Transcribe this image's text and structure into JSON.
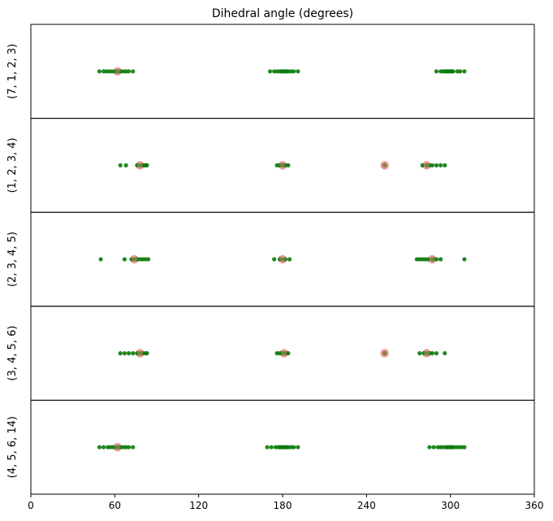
{
  "chart_data": {
    "type": "scatter",
    "title": "Dihedral angle (degrees)",
    "xlim": [
      0,
      360
    ],
    "xticks": [
      0,
      60,
      120,
      180,
      240,
      300,
      360
    ],
    "grid": false,
    "colors": {
      "samples": "#0a7a0a",
      "reference": "#e88a80"
    },
    "panels": [
      {
        "label": "(7, 1, 2, 3)",
        "green": [
          49,
          52,
          54,
          56,
          58,
          60,
          61,
          62,
          63,
          64,
          66,
          68,
          70,
          73,
          171,
          174,
          176,
          178,
          179,
          180,
          181,
          182,
          183,
          184,
          186,
          188,
          191,
          290,
          293,
          295,
          296,
          297,
          298,
          299,
          300,
          301,
          302,
          305,
          307,
          310
        ],
        "pink": [
          62
        ]
      },
      {
        "label": "(1, 2, 3, 4)",
        "green": [
          64,
          68,
          76,
          78,
          80,
          81,
          82,
          83,
          176,
          178,
          180,
          181,
          182,
          184,
          253,
          280,
          283,
          285,
          287,
          290,
          293,
          296
        ],
        "pink": [
          78,
          180,
          253,
          283
        ]
      },
      {
        "label": "(2, 3, 4, 5)",
        "green": [
          50,
          67,
          72,
          74,
          76,
          78,
          80,
          82,
          84,
          174,
          178,
          180,
          182,
          185,
          276,
          278,
          280,
          282,
          284,
          287,
          288,
          290,
          293,
          310
        ],
        "pink": [
          74,
          180,
          287
        ]
      },
      {
        "label": "(3, 4, 5, 6)",
        "green": [
          64,
          67,
          70,
          73,
          76,
          78,
          80,
          82,
          83,
          176,
          178,
          180,
          181,
          183,
          184,
          253,
          278,
          281,
          283,
          285,
          287,
          290,
          296
        ],
        "pink": [
          78,
          181,
          253,
          283
        ]
      },
      {
        "label": "(4, 5, 6, 14)",
        "green": [
          49,
          52,
          55,
          57,
          59,
          61,
          62,
          63,
          64,
          66,
          68,
          70,
          73,
          169,
          172,
          175,
          177,
          178,
          179,
          180,
          181,
          182,
          183,
          184,
          186,
          188,
          191,
          285,
          288,
          291,
          293,
          295,
          297,
          298,
          299,
          300,
          301,
          302,
          304,
          306,
          308,
          310
        ],
        "pink": [
          62
        ]
      }
    ]
  }
}
